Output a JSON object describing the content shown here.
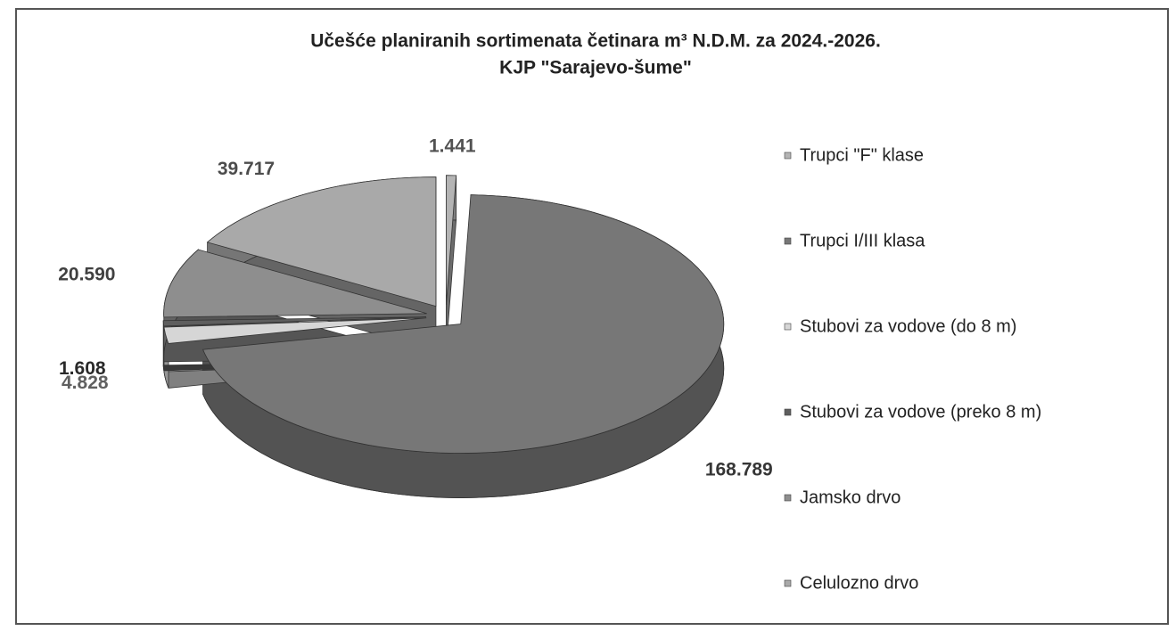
{
  "chart_data": {
    "type": "pie",
    "title": "Učešće planiranih sortimenata četinara m³ N.D.M. za 2024.-2026.",
    "subtitle": "KJP \"Sarajevo-šume\"",
    "categories": [
      "Trupci \"F\" klase",
      "Trupci I/III klasa",
      "Stubovi za vodove (do 8 m)",
      "Stubovi za vodove (preko 8 m)",
      "Jamsko drvo",
      "Celulozno drvo"
    ],
    "values": [
      1441,
      168789,
      4828,
      1608,
      20590,
      39717
    ],
    "value_labels": [
      "1.441",
      "168.789",
      "4.828",
      "1.608",
      "20.590",
      "39.717"
    ],
    "colors": [
      "#b4b4b4",
      "#777777",
      "#d6d6d6",
      "#5e5e5e",
      "#8e8e8e",
      "#a9a9a9"
    ],
    "legend": "right"
  }
}
